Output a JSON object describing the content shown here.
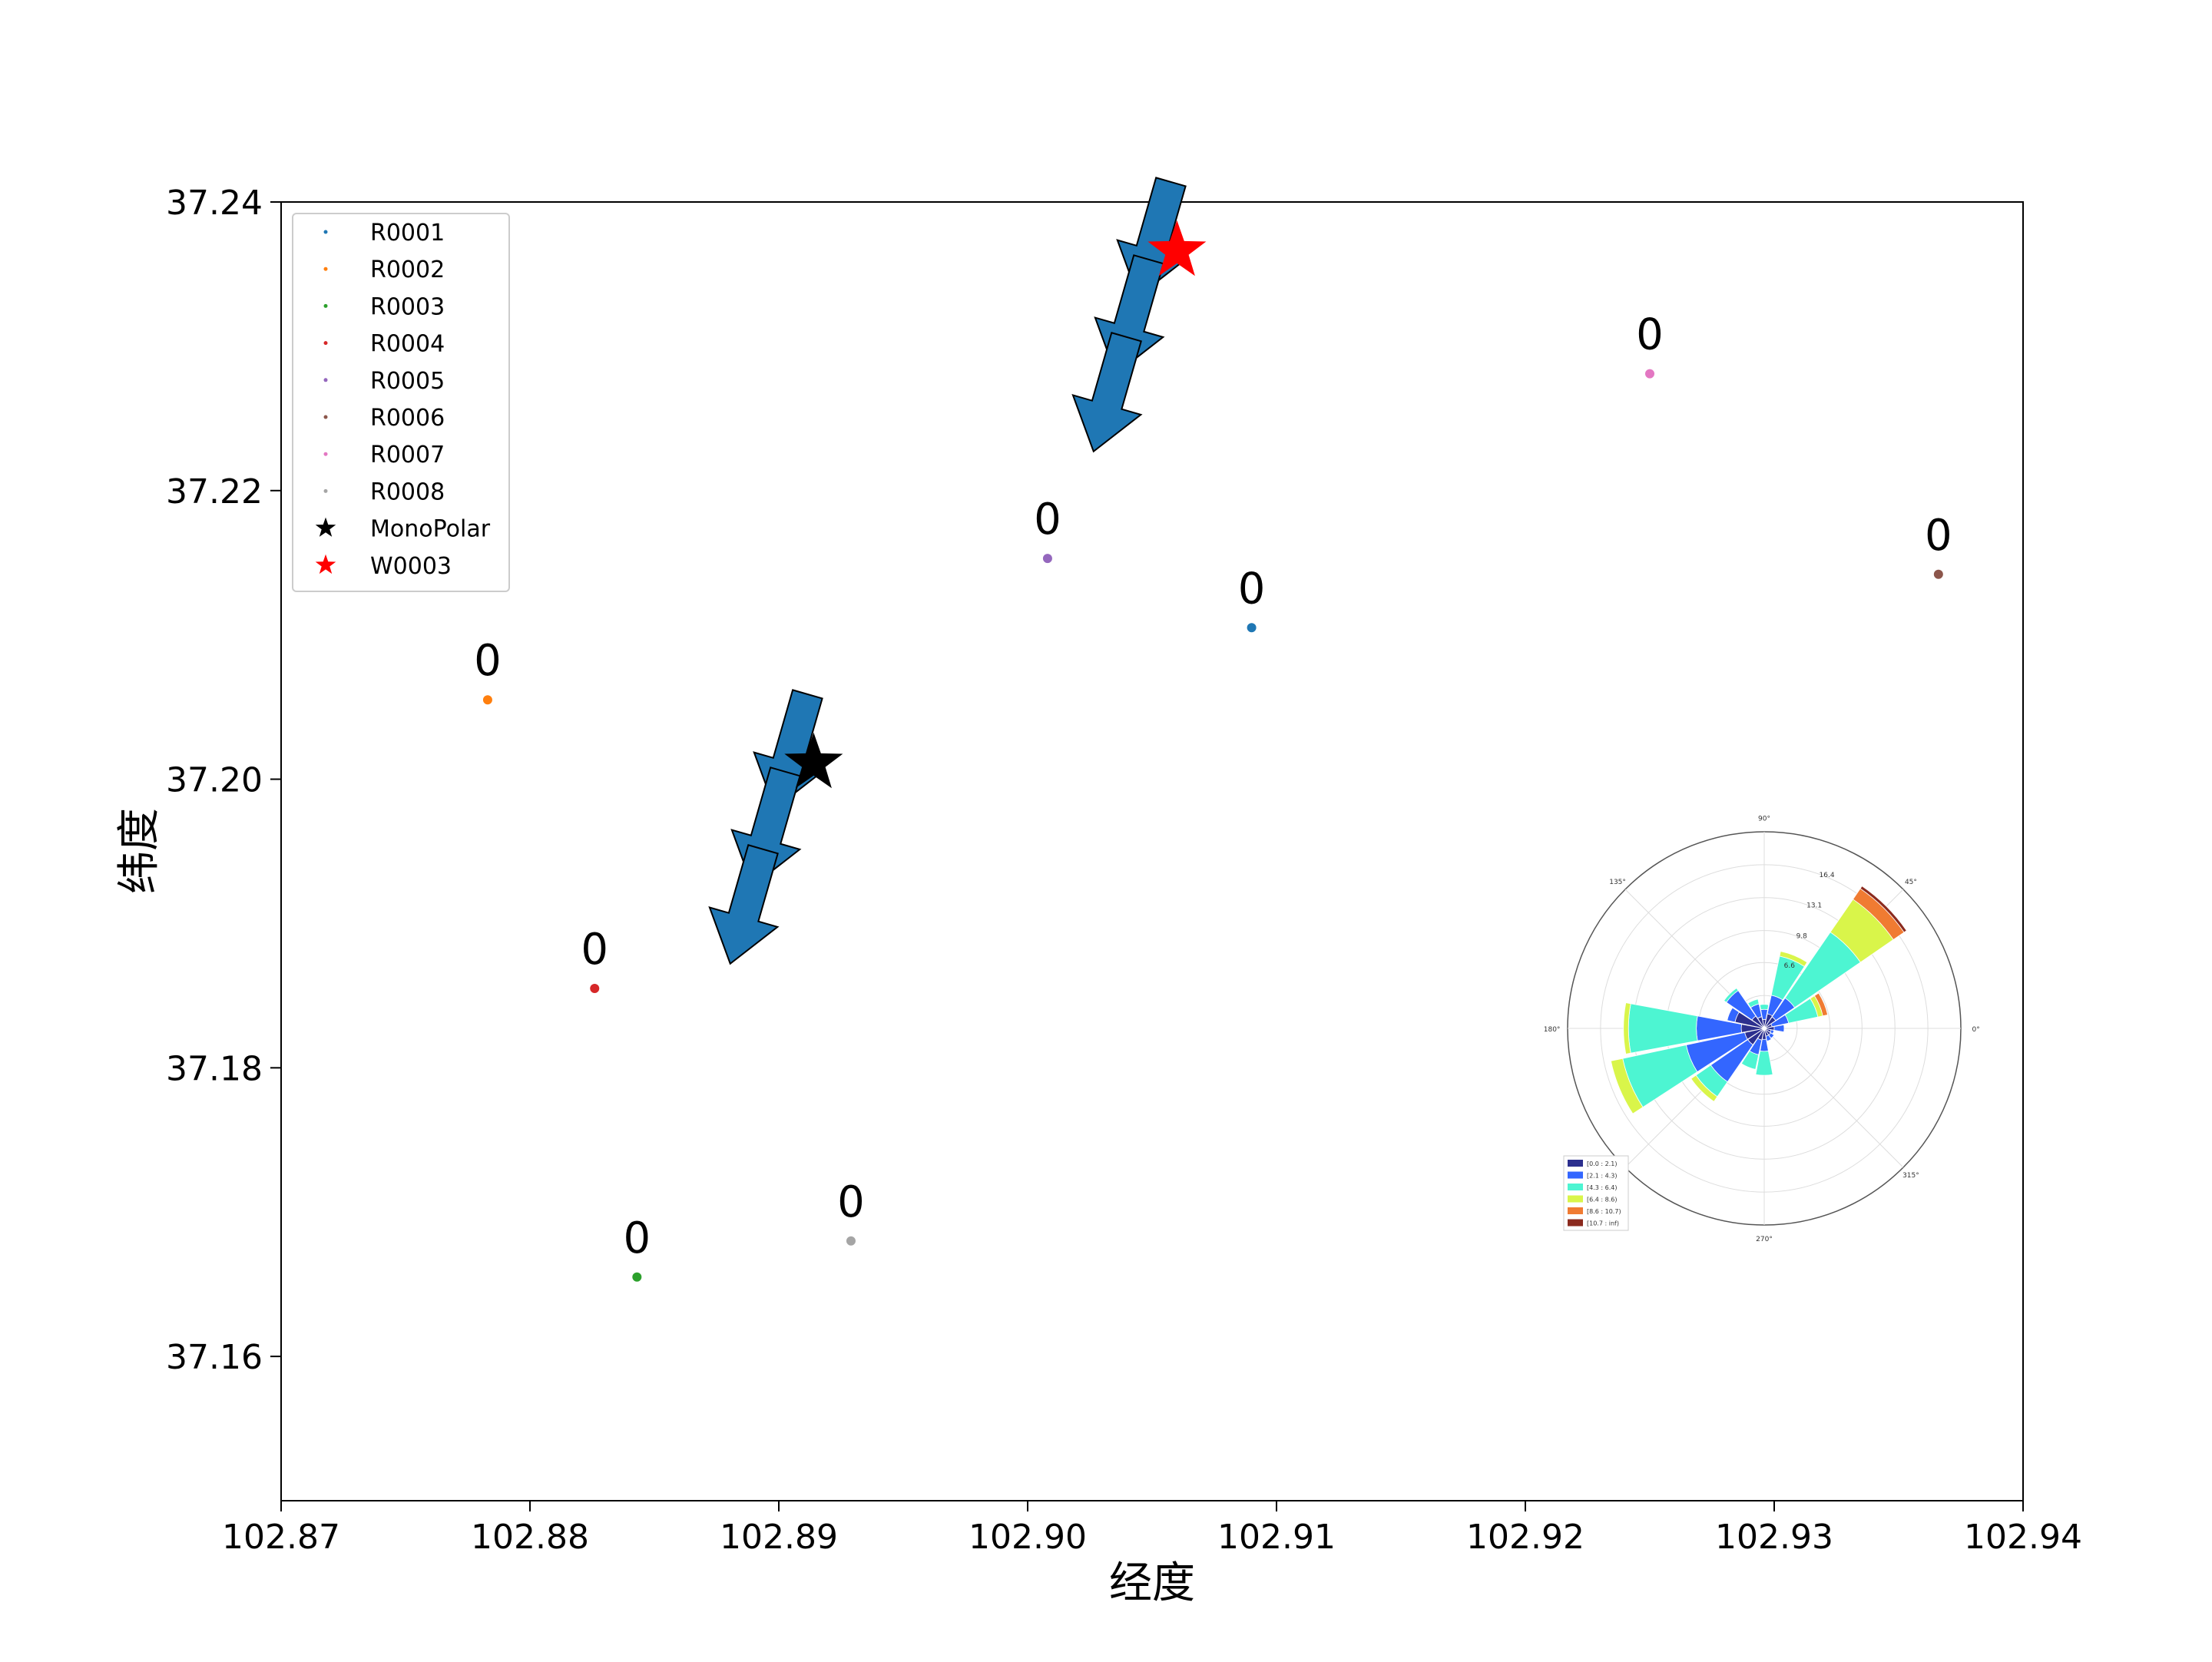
{
  "chart_data": {
    "type": "scatter",
    "title": "",
    "xlabel": "经度",
    "ylabel": "纬度",
    "xlim": [
      102.87,
      102.94
    ],
    "ylim": [
      37.15,
      37.24
    ],
    "xticks": [
      "102.87",
      "102.88",
      "102.89",
      "102.90",
      "102.91",
      "102.92",
      "102.93",
      "102.94"
    ],
    "yticks": [
      "37.24",
      "37.22",
      "37.20",
      "37.18",
      "37.16"
    ],
    "legend_position": "top-left",
    "points": [
      {
        "name": "R0001",
        "x": 102.909,
        "y": 37.2105,
        "label": "0",
        "color": "#1f77b4"
      },
      {
        "name": "R0002",
        "x": 102.8783,
        "y": 37.2055,
        "label": "0",
        "color": "#ff7f0e"
      },
      {
        "name": "R0003",
        "x": 102.8843,
        "y": 37.1655,
        "label": "0",
        "color": "#2ca02c"
      },
      {
        "name": "R0004",
        "x": 102.8826,
        "y": 37.1855,
        "label": "0",
        "color": "#d62728"
      },
      {
        "name": "R0005",
        "x": 102.9008,
        "y": 37.2153,
        "label": "0",
        "color": "#9467bd"
      },
      {
        "name": "R0006",
        "x": 102.9366,
        "y": 37.2142,
        "label": "0",
        "color": "#8c564b"
      },
      {
        "name": "R0007",
        "x": 102.925,
        "y": 37.2281,
        "label": "0",
        "color": "#e377c2"
      },
      {
        "name": "R0008",
        "x": 102.8929,
        "y": 37.168,
        "label": "0",
        "color": "#a5a5a5"
      }
    ],
    "sources": [
      {
        "name": "MonoPolar",
        "x": 102.8914,
        "y": 37.2011,
        "marker": "star",
        "color": "#000000"
      },
      {
        "name": "W0003",
        "x": 102.906,
        "y": 37.2366,
        "marker": "star",
        "color": "#ff0000"
      }
    ],
    "wind_arrows": {
      "color": "#1f77b4",
      "groups": [
        {
          "anchor": "MonoPolar",
          "count": 3,
          "direction": "south-southwest"
        },
        {
          "anchor": "W0003",
          "count": 3,
          "direction": "south-southwest"
        }
      ]
    },
    "legend": [
      "R0001",
      "R0002",
      "R0003",
      "R0004",
      "R0005",
      "R0006",
      "R0007",
      "R0008",
      "MonoPolar",
      "W0003"
    ],
    "windrose": {
      "angle_labels": [
        "90°",
        "45°",
        "0°",
        "315°",
        "270°",
        "180°",
        "135°"
      ],
      "radial_labels": [
        "6.6",
        "9.8",
        "13.1",
        "16.4"
      ],
      "bins": [
        "[0.0 : 2.1)",
        "[2.1 : 4.3)",
        "[4.3 : 6.4)",
        "[6.4 : 8.6)",
        "[8.6 : 10.7)",
        "[10.7 : inf)"
      ],
      "bin_colors": [
        "#2c2f8e",
        "#3366ff",
        "#4df5d2",
        "#d9f54a",
        "#f07b32",
        "#8b2a1e"
      ],
      "rmax": 19.7,
      "sectors": [
        {
          "angle": 0,
          "values": [
            1.0,
            1.0,
            0,
            0,
            0,
            0
          ]
        },
        {
          "angle": 22.5,
          "values": [
            0.8,
            1.7,
            3.0,
            0.5,
            0.5,
            0
          ]
        },
        {
          "angle": 45,
          "values": [
            1.4,
            2.3,
            8.0,
            4.0,
            1.3,
            0.3
          ]
        },
        {
          "angle": 67.5,
          "values": [
            1.5,
            1.9,
            4.0,
            0.5,
            0,
            0
          ]
        },
        {
          "angle": 90,
          "values": [
            0.9,
            1.0,
            0.5,
            0,
            0,
            0
          ]
        },
        {
          "angle": 112.5,
          "values": [
            1.2,
            1.3,
            0.5,
            0,
            0,
            0
          ]
        },
        {
          "angle": 135,
          "values": [
            1.5,
            3.1,
            0.3,
            0,
            0,
            0
          ]
        },
        {
          "angle": 157.5,
          "values": [
            3.0,
            0.8,
            0,
            0,
            0,
            0
          ]
        },
        {
          "angle": 180,
          "values": [
            2.3,
            4.5,
            6.8,
            0.5,
            0,
            0
          ]
        },
        {
          "angle": 202.5,
          "values": [
            2.0,
            6.0,
            6.5,
            1.2,
            0,
            0
          ]
        },
        {
          "angle": 225,
          "values": [
            2.0,
            4.5,
            1.8,
            0.6,
            0,
            0
          ]
        },
        {
          "angle": 247.5,
          "values": [
            1.2,
            1.5,
            1.5,
            0,
            0,
            0
          ]
        },
        {
          "angle": 270,
          "values": [
            1.1,
            1.2,
            2.4,
            0,
            0,
            0
          ]
        },
        {
          "angle": 292.5,
          "values": [
            0.8,
            0.5,
            0,
            0,
            0,
            0
          ]
        },
        {
          "angle": 315,
          "values": [
            0.8,
            0.4,
            0,
            0,
            0,
            0
          ]
        },
        {
          "angle": 337.5,
          "values": [
            0.7,
            0.3,
            0,
            0,
            0,
            0
          ]
        }
      ]
    }
  }
}
